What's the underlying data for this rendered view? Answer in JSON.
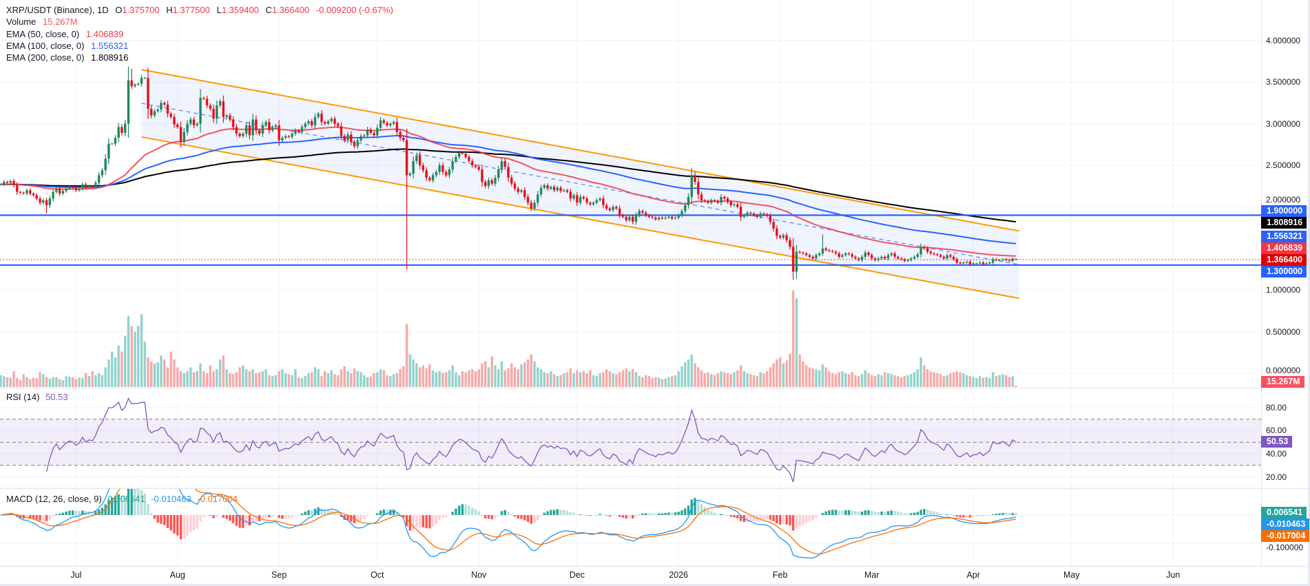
{
  "legend": {
    "symbol": "XRP/USDT (Binance), 1D",
    "o_label": "O",
    "o": "1.375700",
    "h_label": "H",
    "h": "1.377500",
    "l_label": "L",
    "l": "1.359400",
    "c_label": "C",
    "c": "1.366400",
    "change": "-0.009200 (-0.67%)",
    "volume_label": "Volume",
    "volume": "15.267M",
    "ema50_label": "EMA (50, close, 0)",
    "ema50": "1.406839",
    "ema100_label": "EMA (100, close, 0)",
    "ema100": "1.556321",
    "ema200_label": "EMA (200, close, 0)",
    "ema200": "1.808916",
    "rsi_label": "RSI (14)",
    "rsi": "50.53",
    "macd_label": "MACD (12, 26, close, 9)",
    "macd_hist": "0.006541",
    "macd": "-0.010463",
    "macd_signal": "-0.017004"
  },
  "price_tags": {
    "level_high": "1.900000",
    "ema200": "1.808916",
    "ema100": "1.556321",
    "ema50": "1.406839",
    "last": "1.366400",
    "level_low": "1.300000",
    "volume": "15.267M",
    "rsi": "50.53",
    "macd_hist": "0.006541",
    "macd": "-0.010463",
    "macd_signal": "-0.017004"
  },
  "colors": {
    "up": "#22875a",
    "down": "#e8101a",
    "vol_up": "#92d2cc",
    "vol_down": "#f7a9a7",
    "ema50": "#f23645",
    "ema100": "#2962ff",
    "ema200": "#000000",
    "level": "#2962ff",
    "channel": "#ff9800",
    "channel_fill": "#2962ff",
    "rsi": "#7e57c2",
    "macd": "#2196f3",
    "signal": "#ff6d00",
    "hist_up_strong": "#26a69a",
    "hist_up_weak": "#b2dfdb",
    "hist_down_strong": "#ff5252",
    "hist_down_weak": "#ffcdd2"
  },
  "chart_data": {
    "type": "candlestick",
    "symbol": "XRP/USDT",
    "interval": "1D",
    "price_ticks": [
      "4.000000",
      "3.500000",
      "3.000000",
      "2.500000",
      "2.000000",
      "1.000000",
      "0.500000",
      "0.000000"
    ],
    "rsi_ticks": [
      "80.00",
      "60.00",
      "40.00",
      "20.00"
    ],
    "macd_ticks": [
      "-0.100000"
    ],
    "time_axis": [
      {
        "label": "Jul",
        "date": "2025-07-01"
      },
      {
        "label": "Aug",
        "date": "2025-08-01"
      },
      {
        "label": "Sep",
        "date": "2025-09-01"
      },
      {
        "label": "Oct",
        "date": "2025-10-01"
      },
      {
        "label": "Nov",
        "date": "2025-11-01"
      },
      {
        "label": "Dec",
        "date": "2025-12-01"
      },
      {
        "label": "2026",
        "date": "2026-01-01"
      },
      {
        "label": "Feb",
        "date": "2026-02-01"
      },
      {
        "label": "Mar",
        "date": "2026-03-01"
      },
      {
        "label": "Apr",
        "date": "2026-04-01"
      },
      {
        "label": "May",
        "date": "2026-05-01"
      },
      {
        "label": "Jun",
        "date": "2026-06-01"
      }
    ],
    "horizontal_levels": [
      1.9,
      1.3
    ],
    "last_price": 1.3664,
    "channel": {
      "start_date": "2025-07-21",
      "end_date": "2026-04-15",
      "upper": [
        3.65,
        1.71
      ],
      "lower": [
        2.84,
        0.9
      ]
    },
    "notable_wicks": [
      {
        "date": "2025-07-18",
        "high": 3.66
      },
      {
        "date": "2025-10-10",
        "low": 1.25
      },
      {
        "date": "2026-02-05",
        "low": 1.12
      },
      {
        "date": "2026-01-06",
        "high": 2.42
      },
      {
        "date": "2026-02-14",
        "high": 1.67
      },
      {
        "date": "2025-06-22",
        "low": 1.92
      }
    ],
    "last_candle": {
      "open": 1.3757,
      "high": 1.3775,
      "low": 1.3594,
      "close": 1.3664
    },
    "months": [
      {
        "month": "2025-06",
        "first_day": 8,
        "close": [
          2.27,
          2.3,
          2.29,
          2.31,
          2.26,
          2.18,
          2.17,
          2.16,
          2.2,
          2.16,
          2.14,
          2.1,
          2.05,
          2.08,
          2.02,
          2.1,
          2.18,
          2.22,
          2.16,
          2.19,
          2.22,
          2.24,
          2.23
        ],
        "volume_m": [
          120,
          110,
          100,
          95,
          160,
          90,
          70,
          130,
          100,
          80,
          95,
          90,
          150,
          130,
          100,
          85,
          100,
          100,
          80,
          70,
          110,
          105,
          100
        ]
      },
      {
        "month": "2025-07",
        "first_day": 1,
        "close": [
          2.2,
          2.22,
          2.27,
          2.23,
          2.25,
          2.24,
          2.29,
          2.38,
          2.44,
          2.58,
          2.76,
          2.76,
          2.83,
          2.96,
          2.89,
          3.0,
          3.52,
          3.45,
          3.47,
          3.48,
          3.55,
          3.55,
          3.18,
          3.1,
          3.15,
          3.17,
          3.25,
          3.23,
          3.12,
          3.08,
          2.99
        ],
        "volume_m": [
          80,
          95,
          90,
          140,
          110,
          160,
          120,
          140,
          120,
          200,
          280,
          360,
          300,
          420,
          360,
          520,
          720,
          620,
          560,
          620,
          740,
          460,
          300,
          260,
          240,
          250,
          320,
          280,
          200,
          360,
          280
        ]
      },
      {
        "month": "2025-08",
        "first_day": 1,
        "close": [
          2.96,
          2.78,
          2.9,
          3.0,
          3.05,
          2.98,
          3.0,
          3.31,
          3.3,
          3.22,
          3.18,
          3.06,
          3.22,
          3.27,
          3.08,
          3.1,
          3.05,
          2.96,
          2.88,
          2.85,
          2.88,
          2.98,
          2.86,
          3.05,
          2.92,
          2.88,
          2.98,
          3.02,
          2.92,
          2.96,
          2.98
        ],
        "volume_m": [
          200,
          160,
          140,
          160,
          200,
          150,
          160,
          240,
          160,
          140,
          220,
          160,
          180,
          280,
          320,
          180,
          140,
          130,
          150,
          200,
          220,
          180,
          160,
          180,
          140,
          150,
          160,
          180,
          120,
          110,
          120
        ]
      },
      {
        "month": "2025-09",
        "first_day": 1,
        "close": [
          2.8,
          2.83,
          2.85,
          2.84,
          2.88,
          2.92,
          2.9,
          2.96,
          3.0,
          3.03,
          2.98,
          3.08,
          3.12,
          3.02,
          3.0,
          3.03,
          3.06,
          3.0,
          2.97,
          2.85,
          2.8,
          2.87,
          2.78,
          2.73,
          2.8,
          2.85,
          2.86,
          2.93,
          2.89,
          2.86
        ],
        "volume_m": [
          160,
          180,
          140,
          130,
          120,
          180,
          100,
          90,
          110,
          140,
          150,
          200,
          180,
          110,
          160,
          140,
          170,
          130,
          120,
          180,
          210,
          160,
          140,
          190,
          160,
          150,
          120,
          100,
          110,
          140
        ]
      },
      {
        "month": "2025-10",
        "first_day": 1,
        "close": [
          2.95,
          3.04,
          3.01,
          2.98,
          3.0,
          3.02,
          2.9,
          2.83,
          2.8,
          2.38,
          2.4,
          2.55,
          2.62,
          2.5,
          2.44,
          2.35,
          2.32,
          2.38,
          2.42,
          2.5,
          2.42,
          2.38,
          2.45,
          2.55,
          2.6,
          2.65,
          2.64,
          2.6,
          2.55,
          2.5,
          2.48
        ],
        "volume_m": [
          150,
          180,
          170,
          120,
          110,
          130,
          140,
          180,
          210,
          640,
          330,
          280,
          240,
          200,
          220,
          190,
          230,
          170,
          150,
          160,
          140,
          150,
          170,
          220,
          150,
          120,
          160,
          150,
          170,
          180,
          160
        ]
      },
      {
        "month": "2025-11",
        "first_day": 1,
        "close": [
          2.45,
          2.3,
          2.25,
          2.32,
          2.28,
          2.35,
          2.45,
          2.55,
          2.48,
          2.35,
          2.28,
          2.22,
          2.18,
          2.2,
          2.12,
          2.05,
          1.98,
          2.05,
          2.15,
          2.23,
          2.26,
          2.22,
          2.24,
          2.2,
          2.23,
          2.19,
          2.2,
          2.18,
          2.1,
          2.14
        ],
        "volume_m": [
          180,
          240,
          260,
          200,
          310,
          220,
          180,
          260,
          170,
          190,
          240,
          200,
          180,
          230,
          250,
          280,
          330,
          260,
          200,
          180,
          150,
          140,
          160,
          130,
          110,
          120,
          140,
          150,
          190,
          140
        ]
      },
      {
        "month": "2025-12",
        "first_day": 1,
        "close": [
          2.05,
          2.12,
          2.1,
          2.05,
          2.03,
          2.05,
          2.08,
          2.1,
          2.02,
          1.98,
          1.96,
          2.0,
          1.98,
          1.9,
          1.88,
          1.84,
          1.88,
          1.82,
          1.9,
          1.95,
          1.93,
          1.9,
          1.88,
          1.87,
          1.85,
          1.87,
          1.86,
          1.87,
          1.88,
          1.86,
          1.87
        ],
        "volume_m": [
          170,
          150,
          160,
          140,
          170,
          120,
          110,
          140,
          150,
          180,
          160,
          140,
          130,
          150,
          170,
          190,
          160,
          180,
          150,
          110,
          100,
          120,
          110,
          90,
          100,
          95,
          80,
          85,
          100,
          110,
          120
        ]
      },
      {
        "month": "2026-01",
        "first_day": 1,
        "close": [
          1.9,
          1.95,
          2.02,
          2.12,
          2.38,
          2.3,
          2.15,
          2.08,
          2.07,
          2.05,
          2.08,
          2.07,
          2.05,
          2.12,
          2.1,
          2.06,
          2.02,
          2.03,
          2.0,
          1.88,
          1.9,
          1.93,
          1.92,
          1.9,
          1.88,
          1.92,
          1.91,
          1.89,
          1.82,
          1.74,
          1.65
        ],
        "volume_m": [
          160,
          210,
          250,
          280,
          330,
          240,
          200,
          170,
          140,
          150,
          130,
          120,
          140,
          160,
          150,
          140,
          130,
          150,
          170,
          220,
          160,
          140,
          130,
          120,
          110,
          150,
          140,
          160,
          200,
          240,
          280
        ]
      },
      {
        "month": "2026-02",
        "first_day": 1,
        "close": [
          1.63,
          1.66,
          1.6,
          1.52,
          1.22,
          1.46,
          1.45,
          1.44,
          1.42,
          1.4,
          1.38,
          1.42,
          1.44,
          1.5,
          1.48,
          1.47,
          1.46,
          1.44,
          1.4,
          1.42,
          1.44,
          1.43,
          1.4,
          1.38,
          1.36,
          1.4,
          1.45,
          1.42
        ],
        "volume_m": [
          300,
          240,
          270,
          340,
          980,
          900,
          330,
          260,
          220,
          200,
          190,
          180,
          170,
          230,
          200,
          160,
          140,
          130,
          150,
          160,
          140,
          130,
          150,
          120,
          110,
          130,
          170,
          140
        ]
      },
      {
        "month": "2026-03",
        "first_day": 1,
        "close": [
          1.38,
          1.36,
          1.38,
          1.4,
          1.38,
          1.42,
          1.44,
          1.4,
          1.38,
          1.37,
          1.35,
          1.36,
          1.38,
          1.4,
          1.43,
          1.52,
          1.5,
          1.46,
          1.44,
          1.43,
          1.42,
          1.4,
          1.38,
          1.42,
          1.4,
          1.37,
          1.33,
          1.32,
          1.33,
          1.34,
          1.31
        ],
        "volume_m": [
          120,
          110,
          130,
          120,
          150,
          140,
          130,
          120,
          110,
          100,
          110,
          120,
          130,
          150,
          180,
          300,
          220,
          180,
          160,
          150,
          140,
          130,
          110,
          120,
          140,
          150,
          160,
          150,
          140,
          120,
          110
        ]
      },
      {
        "month": "2026-04",
        "first_day": 1,
        "close": [
          1.32,
          1.32,
          1.33,
          1.31,
          1.32,
          1.33,
          1.37,
          1.36,
          1.36,
          1.37,
          1.36,
          1.35,
          1.3757,
          1.3664
        ],
        "volume_m": [
          100,
          90,
          110,
          95,
          100,
          90,
          150,
          110,
          120,
          130,
          120,
          100,
          110,
          15.267
        ]
      }
    ]
  }
}
